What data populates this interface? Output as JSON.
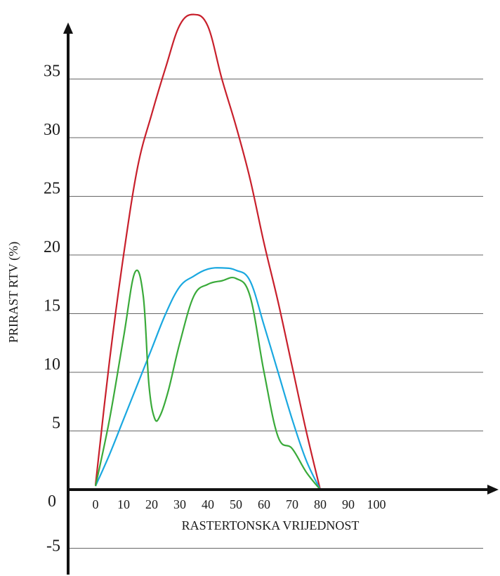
{
  "chart_data": {
    "type": "line",
    "title": "",
    "xlabel": "RASTERTONSKA VRIJEDNOST",
    "ylabel": "PRIRAST RTV (%)",
    "xlim": [
      0,
      100
    ],
    "ylim": [
      -5,
      40
    ],
    "x_ticks": [
      0,
      10,
      20,
      30,
      40,
      50,
      60,
      70,
      80,
      90,
      100
    ],
    "y_ticks": [
      -5,
      0,
      5,
      10,
      15,
      20,
      25,
      30,
      35
    ],
    "y_gridlines": [
      -5,
      5,
      10,
      15,
      20,
      25,
      30,
      35
    ],
    "grid": true,
    "series": [
      {
        "color": "#c8202c",
        "x": [
          0,
          5,
          10,
          15,
          20,
          25,
          30,
          35,
          40,
          45,
          50,
          55,
          60,
          65,
          70,
          75,
          80
        ],
        "y": [
          0.4,
          11,
          20,
          27.5,
          32,
          36,
          39.6,
          40.5,
          39.5,
          35,
          31,
          26.5,
          21,
          16,
          10.5,
          5,
          0
        ]
      },
      {
        "color": "#1aa8e0",
        "x": [
          0,
          5,
          10,
          15,
          20,
          25,
          30,
          35,
          40,
          45,
          50,
          55,
          60,
          65,
          70,
          75,
          80
        ],
        "y": [
          0.3,
          3,
          6,
          9,
          12,
          15,
          17.3,
          18.2,
          18.8,
          18.9,
          18.7,
          17.8,
          14,
          10,
          6,
          2.5,
          0
        ]
      },
      {
        "color": "#3aaa3a",
        "x": [
          0,
          5,
          10,
          14,
          17,
          19,
          21,
          23,
          26,
          30,
          35,
          40,
          45,
          50,
          55,
          60,
          65,
          70,
          75,
          80
        ],
        "y": [
          0.3,
          6,
          13,
          18.5,
          16.5,
          9,
          6.1,
          6.3,
          8.5,
          12.5,
          16.5,
          17.5,
          17.8,
          18,
          16.5,
          10,
          4.5,
          3.5,
          1.5,
          0
        ]
      }
    ]
  }
}
